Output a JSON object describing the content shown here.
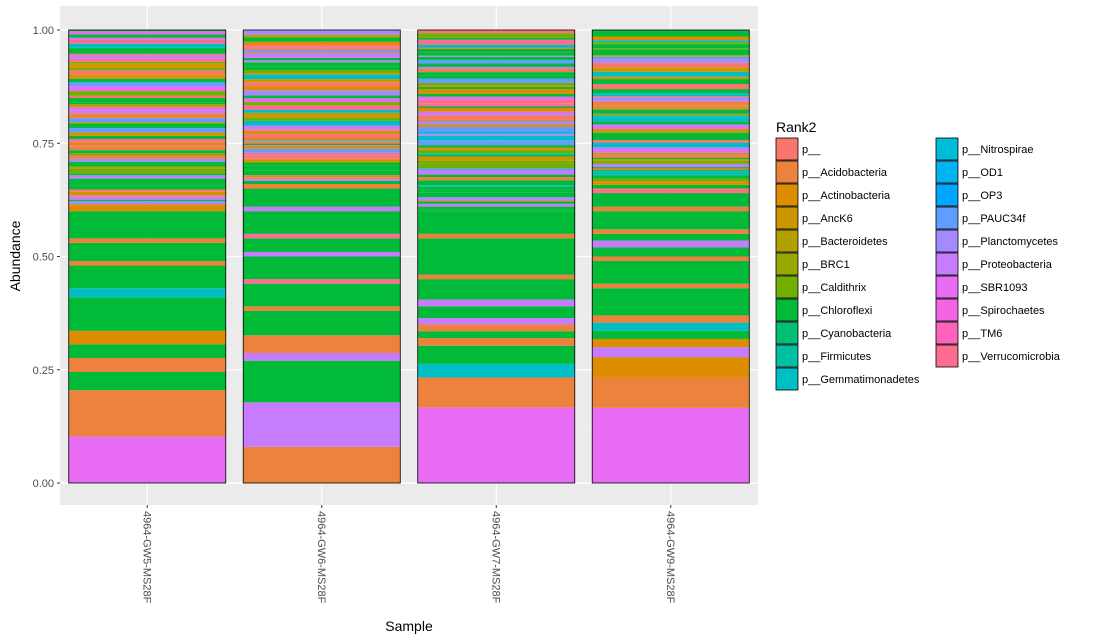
{
  "chart_data": {
    "type": "bar",
    "stacked": true,
    "xlabel": "Sample",
    "ylabel": "Abundance",
    "ylim": [
      0,
      1
    ],
    "yticks": [
      "0.00",
      "0.25",
      "0.50",
      "0.75",
      "1.00"
    ],
    "ytick_values": [
      0,
      0.25,
      0.5,
      0.75,
      1.0
    ],
    "categories": [
      "4964-GW5-MS28F",
      "4964-GW6-MS28F",
      "4964-GW7-MS28F",
      "4964-GW9-MS28F"
    ],
    "legend": {
      "title": "Rank2",
      "position": "right",
      "entries": [
        {
          "name": "p__",
          "color": "#F8766D"
        },
        {
          "name": "p__Acidobacteria",
          "color": "#EC823C"
        },
        {
          "name": "p__Actinobacteria",
          "color": "#DD8D00"
        },
        {
          "name": "p__AncK6",
          "color": "#CA9700"
        },
        {
          "name": "p__Bacteroidetes",
          "color": "#B3A000"
        },
        {
          "name": "p__BRC1",
          "color": "#97A900"
        },
        {
          "name": "p__Caldithrix",
          "color": "#71B000"
        },
        {
          "name": "p__Chloroflexi",
          "color": "#00BA38"
        },
        {
          "name": "p__Cyanobacteria",
          "color": "#00BF74"
        },
        {
          "name": "p__Firmicutes",
          "color": "#00C0A3"
        },
        {
          "name": "p__Gemmatimonadetes",
          "color": "#00BFC4"
        },
        {
          "name": "p__Nitrospirae",
          "color": "#00BCD8"
        },
        {
          "name": "p__OD1",
          "color": "#00B4EF"
        },
        {
          "name": "p__OP3",
          "color": "#00A5FF"
        },
        {
          "name": "p__PAUC34f",
          "color": "#619CFF"
        },
        {
          "name": "p__Planctomycetes",
          "color": "#A58AFF"
        },
        {
          "name": "p__Proteobacteria",
          "color": "#C77CFF"
        },
        {
          "name": "p__SBR1093",
          "color": "#E76BF3"
        },
        {
          "name": "p__Spirochaetes",
          "color": "#F564E3"
        },
        {
          "name": "p__TM6",
          "color": "#FF62BC"
        },
        {
          "name": "p__Verrucomicrobia",
          "color": "#FF6C91"
        }
      ]
    },
    "series_major": [
      {
        "sample": "4964-GW5-MS28F",
        "segments": [
          {
            "phylum": "p__SBR1093",
            "from": 0.0,
            "to": 0.103
          },
          {
            "phylum": "p__Acidobacteria",
            "from": 0.103,
            "to": 0.205
          },
          {
            "phylum": "p__Chloroflexi",
            "from": 0.205,
            "to": 0.245
          },
          {
            "phylum": "p__Acidobacteria",
            "from": 0.245,
            "to": 0.276
          },
          {
            "phylum": "p__Chloroflexi",
            "from": 0.276,
            "to": 0.306
          },
          {
            "phylum": "p__Actinobacteria",
            "from": 0.306,
            "to": 0.336
          },
          {
            "phylum": "p__Chloroflexi",
            "from": 0.336,
            "to": 0.41
          },
          {
            "phylum": "p__Gemmatimonadetes",
            "from": 0.41,
            "to": 0.43
          },
          {
            "phylum": "p__Chloroflexi",
            "from": 0.43,
            "to": 0.48
          },
          {
            "phylum": "p__Acidobacteria",
            "from": 0.48,
            "to": 0.49
          },
          {
            "phylum": "p__Chloroflexi",
            "from": 0.49,
            "to": 0.53
          },
          {
            "phylum": "p__Acidobacteria",
            "from": 0.53,
            "to": 0.54
          },
          {
            "phylum": "p__Chloroflexi",
            "from": 0.54,
            "to": 0.6
          },
          {
            "phylum": "p__Actinobacteria",
            "from": 0.6,
            "to": 0.615
          }
        ]
      },
      {
        "sample": "4964-GW6-MS28F",
        "segments": [
          {
            "phylum": "p__Acidobacteria",
            "from": 0.0,
            "to": 0.08
          },
          {
            "phylum": "p__Proteobacteria",
            "from": 0.08,
            "to": 0.178
          },
          {
            "phylum": "p__Chloroflexi",
            "from": 0.178,
            "to": 0.27
          },
          {
            "phylum": "p__Proteobacteria",
            "from": 0.27,
            "to": 0.287
          },
          {
            "phylum": "p__Acidobacteria",
            "from": 0.287,
            "to": 0.326
          },
          {
            "phylum": "p__Chloroflexi",
            "from": 0.326,
            "to": 0.38
          },
          {
            "phylum": "p__Acidobacteria",
            "from": 0.38,
            "to": 0.39
          },
          {
            "phylum": "p__Chloroflexi",
            "from": 0.39,
            "to": 0.44
          },
          {
            "phylum": "p__Verrucomicrobia",
            "from": 0.44,
            "to": 0.45
          },
          {
            "phylum": "p__Chloroflexi",
            "from": 0.45,
            "to": 0.5
          },
          {
            "phylum": "p__Proteobacteria",
            "from": 0.5,
            "to": 0.51
          },
          {
            "phylum": "p__Chloroflexi",
            "from": 0.51,
            "to": 0.54
          },
          {
            "phylum": "p__Verrucomicrobia",
            "from": 0.54,
            "to": 0.55
          },
          {
            "phylum": "p__Chloroflexi",
            "from": 0.55,
            "to": 0.6
          },
          {
            "phylum": "p__Proteobacteria",
            "from": 0.6,
            "to": 0.61
          },
          {
            "phylum": "p__Chloroflexi",
            "from": 0.61,
            "to": 0.65
          },
          {
            "phylum": "p__Acidobacteria",
            "from": 0.65,
            "to": 0.66
          }
        ]
      },
      {
        "sample": "4964-GW7-MS28F",
        "segments": [
          {
            "phylum": "p__SBR1093",
            "from": 0.0,
            "to": 0.167
          },
          {
            "phylum": "p__Acidobacteria",
            "from": 0.167,
            "to": 0.233
          },
          {
            "phylum": "p__Gemmatimonadetes",
            "from": 0.233,
            "to": 0.263
          },
          {
            "phylum": "p__Chloroflexi",
            "from": 0.263,
            "to": 0.303
          },
          {
            "phylum": "p__Acidobacteria",
            "from": 0.303,
            "to": 0.32
          },
          {
            "phylum": "p__Chloroflexi",
            "from": 0.32,
            "to": 0.335
          },
          {
            "phylum": "p__Acidobacteria",
            "from": 0.335,
            "to": 0.35
          },
          {
            "phylum": "p__Proteobacteria",
            "from": 0.35,
            "to": 0.364
          },
          {
            "phylum": "p__Chloroflexi",
            "from": 0.364,
            "to": 0.39
          },
          {
            "phylum": "p__Proteobacteria",
            "from": 0.39,
            "to": 0.405
          },
          {
            "phylum": "p__Chloroflexi",
            "from": 0.405,
            "to": 0.45
          },
          {
            "phylum": "p__Acidobacteria",
            "from": 0.45,
            "to": 0.46
          },
          {
            "phylum": "p__Chloroflexi",
            "from": 0.46,
            "to": 0.54
          },
          {
            "phylum": "p__Acidobacteria",
            "from": 0.54,
            "to": 0.55
          },
          {
            "phylum": "p__Chloroflexi",
            "from": 0.55,
            "to": 0.6
          }
        ]
      },
      {
        "sample": "4964-GW9-MS28F",
        "segments": [
          {
            "phylum": "p__SBR1093",
            "from": 0.0,
            "to": 0.166
          },
          {
            "phylum": "p__Acidobacteria",
            "from": 0.166,
            "to": 0.233
          },
          {
            "phylum": "p__Actinobacteria",
            "from": 0.233,
            "to": 0.278
          },
          {
            "phylum": "p__Proteobacteria",
            "from": 0.278,
            "to": 0.3
          },
          {
            "phylum": "p__Actinobacteria",
            "from": 0.3,
            "to": 0.318
          },
          {
            "phylum": "p__Chloroflexi",
            "from": 0.318,
            "to": 0.336
          },
          {
            "phylum": "p__Gemmatimonadetes",
            "from": 0.336,
            "to": 0.354
          },
          {
            "phylum": "p__Acidobacteria",
            "from": 0.354,
            "to": 0.37
          },
          {
            "phylum": "p__Chloroflexi",
            "from": 0.37,
            "to": 0.43
          },
          {
            "phylum": "p__Acidobacteria",
            "from": 0.43,
            "to": 0.44
          },
          {
            "phylum": "p__Chloroflexi",
            "from": 0.44,
            "to": 0.49
          },
          {
            "phylum": "p__Acidobacteria",
            "from": 0.49,
            "to": 0.5
          },
          {
            "phylum": "p__Chloroflexi",
            "from": 0.5,
            "to": 0.52
          },
          {
            "phylum": "p__Proteobacteria",
            "from": 0.52,
            "to": 0.535
          },
          {
            "phylum": "p__Chloroflexi",
            "from": 0.535,
            "to": 0.55
          },
          {
            "phylum": "p__Acidobacteria",
            "from": 0.55,
            "to": 0.56
          },
          {
            "phylum": "p__Chloroflexi",
            "from": 0.56,
            "to": 0.6
          },
          {
            "phylum": "p__Acidobacteria",
            "from": 0.6,
            "to": 0.61
          },
          {
            "phylum": "p__Chloroflexi",
            "from": 0.61,
            "to": 0.64
          }
        ]
      }
    ],
    "rare_taxa_note": "Remaining abundance above the listed segments (to 1.00) consists of many thin bands dominated by p__Chloroflexi with p__Acidobacteria, p__Actinobacteria, p__Proteobacteria and other phyla."
  }
}
